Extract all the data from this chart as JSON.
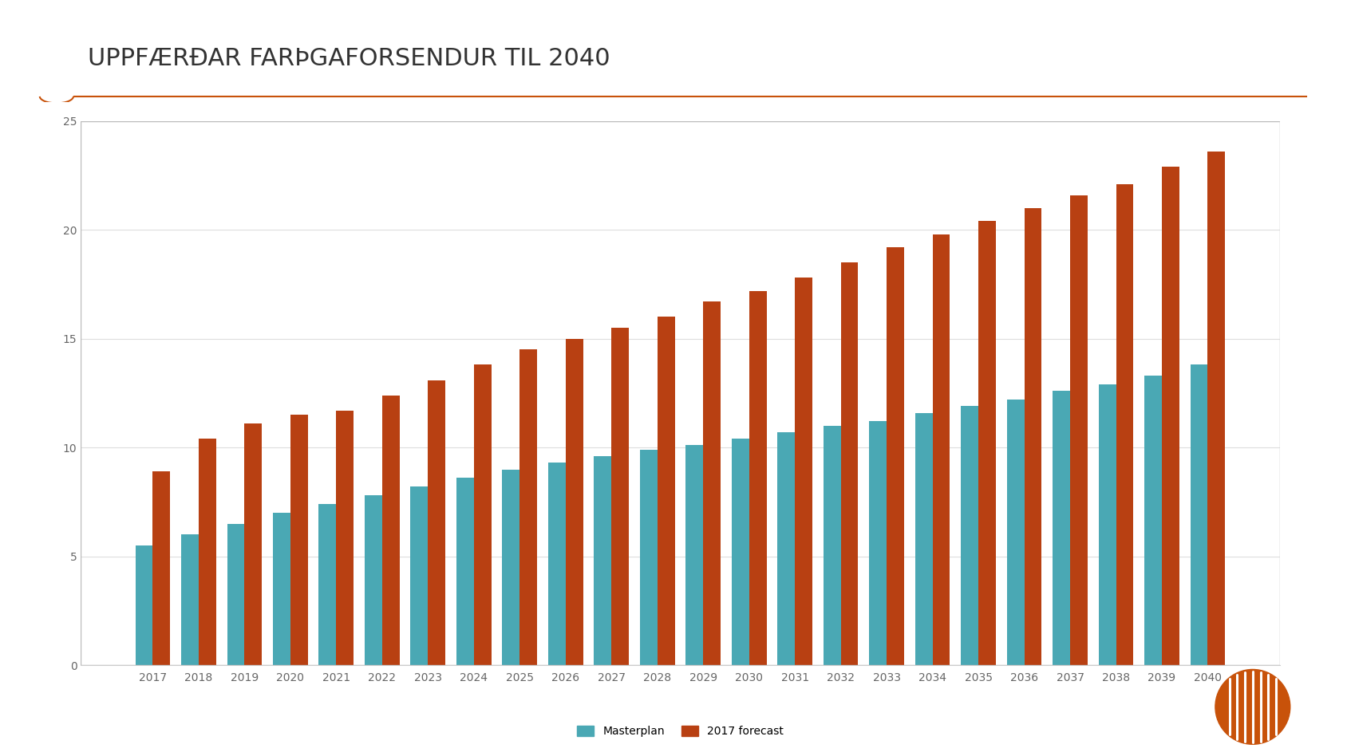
{
  "title": "UPPFÆRÐAR FARÞGAFORSENDUR TIL 2040",
  "years": [
    2017,
    2018,
    2019,
    2020,
    2021,
    2022,
    2023,
    2024,
    2025,
    2026,
    2027,
    2028,
    2029,
    2030,
    2031,
    2032,
    2033,
    2034,
    2035,
    2036,
    2037,
    2038,
    2039,
    2040
  ],
  "masterplan": [
    5.5,
    6.0,
    6.5,
    7.0,
    7.4,
    7.8,
    8.2,
    8.6,
    9.0,
    9.3,
    9.6,
    9.9,
    10.1,
    10.4,
    10.7,
    11.0,
    11.2,
    11.6,
    11.9,
    12.2,
    12.6,
    12.9,
    13.3,
    13.8
  ],
  "forecast_2017": [
    8.9,
    10.4,
    11.1,
    11.5,
    11.7,
    12.4,
    13.1,
    13.8,
    14.5,
    15.0,
    15.5,
    16.0,
    16.7,
    17.2,
    17.8,
    18.5,
    19.2,
    19.8,
    20.4,
    21.0,
    21.6,
    22.1,
    22.9,
    23.6
  ],
  "masterplan_color": "#4aa8b4",
  "forecast_color": "#b84012",
  "bg_color": "#ffffff",
  "chart_bg": "#ffffff",
  "title_color": "#333333",
  "accent_line_color": "#c8520a",
  "ylim": [
    0,
    25
  ],
  "yticks": [
    0,
    5,
    10,
    15,
    20,
    25
  ],
  "legend_labels": [
    "Masterplan",
    "2017 forecast"
  ],
  "title_fontsize": 22,
  "axis_fontsize": 10,
  "legend_fontsize": 10
}
